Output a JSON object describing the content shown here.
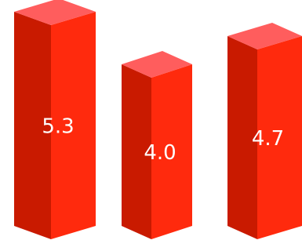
{
  "chart_data": {
    "type": "bar",
    "style": "3d-prism",
    "categories": [
      "",
      "",
      ""
    ],
    "values": [
      5.3,
      4.0,
      4.7
    ],
    "value_labels": [
      "5.3",
      "4.0",
      "4.7"
    ],
    "title": "",
    "xlabel": "",
    "ylabel": "",
    "grid": false,
    "legend": "none",
    "colors": {
      "top": "#ff5d5d",
      "front": "#ff2a0d",
      "side": "#c91a00",
      "label": "#ffffff"
    }
  }
}
